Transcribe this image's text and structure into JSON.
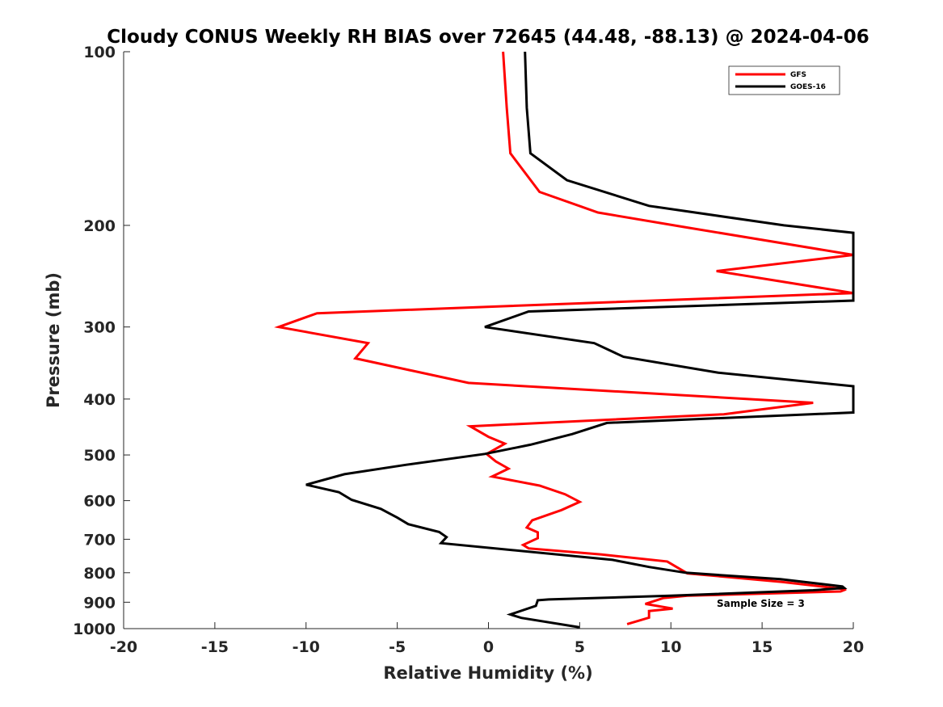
{
  "chart_data": {
    "type": "line",
    "title": "Cloudy CONUS Weekly RH BIAS over 72645 (44.48, -88.13) @ 2024-04-06",
    "xlabel": "Relative Humidity (%)",
    "ylabel": "Pressure (mb)",
    "xlim": [
      -20,
      20
    ],
    "ylim": [
      100,
      1000
    ],
    "yscale": "log",
    "y_reversed": true,
    "xticks": [
      -20,
      -15,
      -10,
      -5,
      0,
      5,
      10,
      15,
      20
    ],
    "yticks": [
      100,
      200,
      300,
      400,
      500,
      600,
      700,
      800,
      900,
      1000
    ],
    "grid": false,
    "legend_position": "top-right",
    "annotation": "Sample Size = 3",
    "series": [
      {
        "name": "GFS",
        "color": "#ff0000",
        "points": [
          [
            0.8,
            100
          ],
          [
            1.0,
            125
          ],
          [
            1.2,
            150
          ],
          [
            2.8,
            175
          ],
          [
            6.0,
            190
          ],
          [
            10.6,
            201
          ],
          [
            20.0,
            225
          ],
          [
            12.5,
            240
          ],
          [
            20.0,
            262
          ],
          [
            -9.4,
            284
          ],
          [
            -11.5,
            300
          ],
          [
            -6.6,
            320
          ],
          [
            -7.3,
            340
          ],
          [
            -1.1,
            375
          ],
          [
            17.8,
            406
          ],
          [
            12.9,
            425
          ],
          [
            -1.0,
            446
          ],
          [
            0.0,
            465
          ],
          [
            0.9,
            478
          ],
          [
            -0.1,
            498
          ],
          [
            0.4,
            513
          ],
          [
            1.1,
            528
          ],
          [
            0.2,
            545
          ],
          [
            2.8,
            565
          ],
          [
            4.2,
            585
          ],
          [
            5.0,
            603
          ],
          [
            4.0,
            623
          ],
          [
            2.4,
            649
          ],
          [
            2.1,
            668
          ],
          [
            2.7,
            681
          ],
          [
            2.7,
            697
          ],
          [
            1.9,
            716
          ],
          [
            2.2,
            726
          ],
          [
            6.2,
            744
          ],
          [
            9.8,
            765
          ],
          [
            10.9,
            802
          ],
          [
            16.1,
            830
          ],
          [
            19.6,
            855
          ],
          [
            19.3,
            862
          ],
          [
            10.9,
            877
          ],
          [
            9.6,
            885
          ],
          [
            8.6,
            906
          ],
          [
            10.1,
            923
          ],
          [
            8.8,
            932
          ],
          [
            8.8,
            957
          ],
          [
            7.6,
            982
          ]
        ]
      },
      {
        "name": "GOES-16",
        "color": "#000000",
        "points": [
          [
            2.0,
            100
          ],
          [
            2.1,
            125
          ],
          [
            2.3,
            150
          ],
          [
            4.3,
            167
          ],
          [
            8.8,
            185
          ],
          [
            16.2,
            200
          ],
          [
            20.0,
            206
          ],
          [
            20.0,
            270
          ],
          [
            2.2,
            282
          ],
          [
            -0.2,
            300
          ],
          [
            5.8,
            320
          ],
          [
            7.4,
            338
          ],
          [
            12.6,
            360
          ],
          [
            20.0,
            380
          ],
          [
            20.0,
            422
          ],
          [
            6.5,
            440
          ],
          [
            4.6,
            460
          ],
          [
            2.3,
            480
          ],
          [
            -0.2,
            498
          ],
          [
            -4.5,
            520
          ],
          [
            -7.9,
            540
          ],
          [
            -10.0,
            563
          ],
          [
            -8.2,
            580
          ],
          [
            -7.5,
            598
          ],
          [
            -5.9,
            620
          ],
          [
            -5.0,
            642
          ],
          [
            -4.4,
            659
          ],
          [
            -2.7,
            680
          ],
          [
            -2.3,
            694
          ],
          [
            -2.6,
            711
          ],
          [
            6.8,
            760
          ],
          [
            8.8,
            782
          ],
          [
            10.8,
            800
          ],
          [
            16.0,
            821
          ],
          [
            19.4,
            845
          ],
          [
            19.5,
            850
          ],
          [
            17.8,
            858
          ],
          [
            10.0,
            877
          ],
          [
            3.3,
            890
          ],
          [
            2.7,
            893
          ],
          [
            2.6,
            913
          ],
          [
            1.2,
            945
          ],
          [
            1.8,
            958
          ],
          [
            5.0,
            995
          ]
        ]
      }
    ]
  }
}
